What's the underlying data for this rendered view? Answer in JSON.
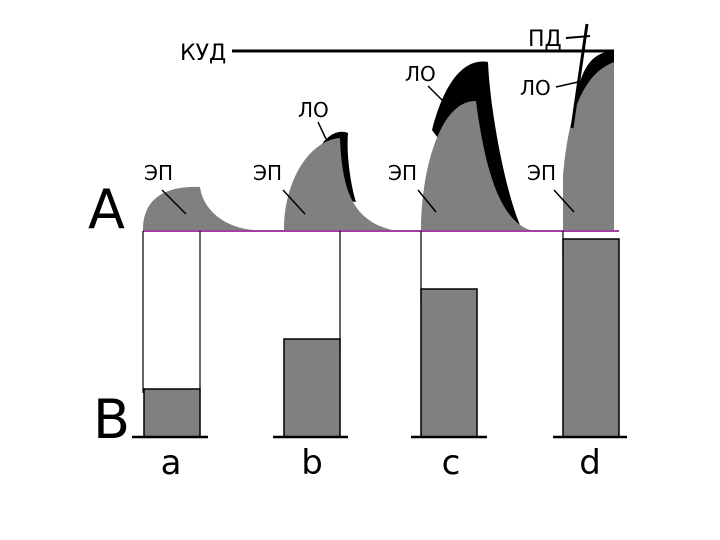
{
  "colors": {
    "background": "#ffffff",
    "grey": "#808080",
    "black": "#000000",
    "baseline": "#800080"
  },
  "panels": {
    "top_label": "А",
    "bottom_label": "В"
  },
  "threshold": {
    "label": "КУД",
    "peak_label": "ПД"
  },
  "graphs": [
    {
      "id": "a",
      "ep_label": "ЭП",
      "lo_label": null
    },
    {
      "id": "b",
      "ep_label": "ЭП",
      "lo_label": "ЛО"
    },
    {
      "id": "c",
      "ep_label": "ЭП",
      "lo_label": "ЛО"
    },
    {
      "id": "d",
      "ep_label": "ЭП",
      "lo_label": "ЛО"
    }
  ],
  "chart_data": {
    "type": "bar",
    "categories": [
      "a",
      "b",
      "c",
      "d"
    ],
    "values": [
      0.24,
      0.49,
      0.74,
      0.99
    ],
    "title": "",
    "xlabel": "",
    "ylabel": "",
    "ylim": [
      0,
      1
    ]
  }
}
